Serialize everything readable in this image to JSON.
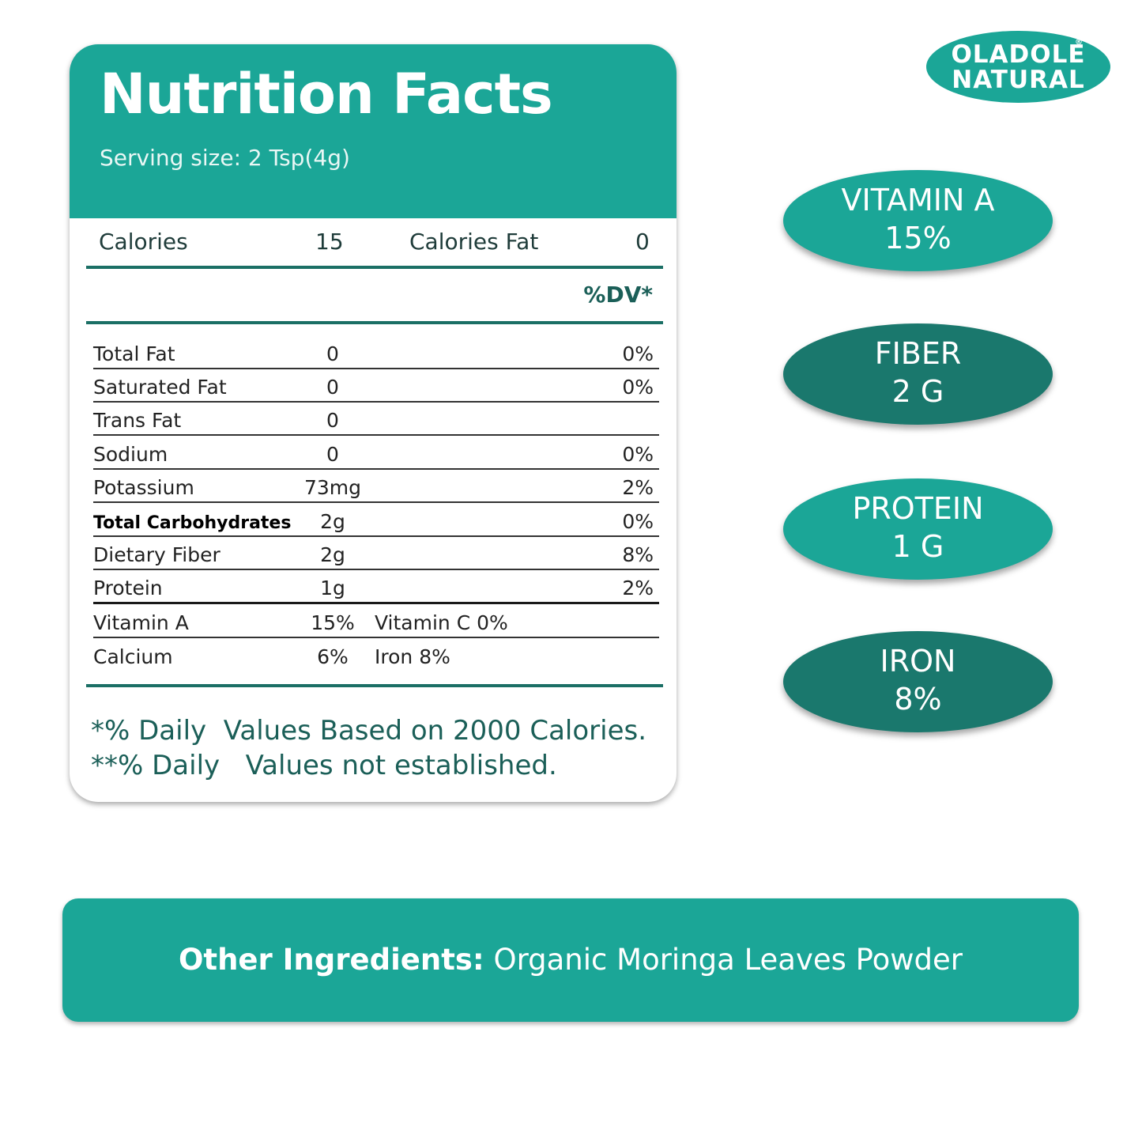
{
  "label": {
    "title": "Nutrition Facts",
    "serving_size": "Serving size: 2 Tsp(4g)",
    "calories_label": "Calories",
    "calories_value": "15",
    "calories_fat_label": "Calories Fat",
    "calories_fat_value": "0",
    "dv_header": "%DV*",
    "rows": [
      {
        "name": "Total Fat",
        "amount": "0",
        "dv": "0%"
      },
      {
        "name": "Saturated Fat",
        "amount": "0",
        "dv": "0%"
      },
      {
        "name": "Trans Fat",
        "amount": "0",
        "dv": ""
      },
      {
        "name": "Sodium",
        "amount": "0",
        "dv": "0%"
      },
      {
        "name": "Potassium",
        "amount": "73mg",
        "dv": "2%"
      },
      {
        "name": "Total Carbohydrates",
        "amount": "2g",
        "dv": "0%"
      },
      {
        "name": "Dietary Fiber",
        "amount": "2g",
        "dv": "8%"
      },
      {
        "name": "Protein",
        "amount": "1g",
        "dv": "2%"
      }
    ],
    "vitamin_rows": [
      {
        "name": "Vitamin A",
        "amount": "15%",
        "other": "Vitamin C 0%"
      },
      {
        "name": "Calcium",
        "amount": "6%",
        "other": "Iron 8%"
      }
    ],
    "footnotes": [
      "*% Daily  Values Based on 2000 Calories.",
      "**% Daily   Values not established."
    ]
  },
  "logo": {
    "line1": "OLADOLE",
    "line2": "NATURAL",
    "mark": "®"
  },
  "highlights": [
    {
      "name": "VITAMIN A",
      "value": "15%",
      "color": "#1ba697"
    },
    {
      "name": "FIBER",
      "value": "2 G",
      "color": "#1a786d"
    },
    {
      "name": "PROTEIN",
      "value": "1 G",
      "color": "#1ba697"
    },
    {
      "name": "IRON",
      "value": "8%",
      "color": "#1a786d"
    }
  ],
  "ingredients": {
    "label": "Other Ingredients:",
    "value": " Organic Moringa Leaves Powder"
  },
  "colors": {
    "teal": "#1ba697",
    "dark_teal": "#1a786d",
    "text_teal": "#1b5f58"
  }
}
